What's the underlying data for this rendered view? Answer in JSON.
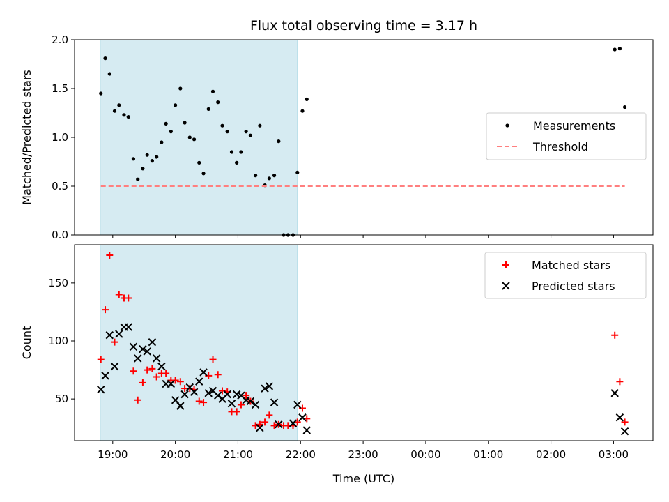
{
  "chart_data": {
    "title": "Flux total observing time = 3.17 h",
    "xlabel": "Time (UTC)",
    "x_unit": "hours since 18:00 UTC",
    "xlim": [
      0.39,
      9.63
    ],
    "xticks": [
      {
        "value": 1,
        "label": "19:00"
      },
      {
        "value": 2,
        "label": "20:00"
      },
      {
        "value": 3,
        "label": "21:00"
      },
      {
        "value": 4,
        "label": "22:00"
      },
      {
        "value": 5,
        "label": "23:00"
      },
      {
        "value": 6,
        "label": "00:00"
      },
      {
        "value": 7,
        "label": "01:00"
      },
      {
        "value": 8,
        "label": "02:00"
      },
      {
        "value": 9,
        "label": "03:00"
      }
    ],
    "shaded_span": {
      "x0": 0.8,
      "x1": 3.95,
      "color": "#add8e6"
    },
    "panels": [
      {
        "type": "scatter",
        "ylabel": "Matched/Predicted stars",
        "ylim": [
          0,
          2.0
        ],
        "yticks": [
          {
            "value": 0,
            "label": "0.0"
          },
          {
            "value": 0.5,
            "label": "0.5"
          },
          {
            "value": 1.0,
            "label": "1.0"
          },
          {
            "value": 1.5,
            "label": "1.5"
          },
          {
            "value": 2.0,
            "label": "2.0"
          }
        ],
        "legend": "center-right",
        "series": [
          {
            "name": "Measurements",
            "marker": "dot",
            "color": "#000000",
            "points": [
              [
                0.81,
                1.45
              ],
              [
                0.88,
                1.81
              ],
              [
                0.95,
                1.65
              ],
              [
                1.03,
                1.27
              ],
              [
                1.1,
                1.33
              ],
              [
                1.18,
                1.23
              ],
              [
                1.25,
                1.21
              ],
              [
                1.33,
                0.78
              ],
              [
                1.4,
                0.57
              ],
              [
                1.48,
                0.68
              ],
              [
                1.55,
                0.82
              ],
              [
                1.63,
                0.76
              ],
              [
                1.7,
                0.8
              ],
              [
                1.78,
                0.95
              ],
              [
                1.85,
                1.14
              ],
              [
                1.93,
                1.06
              ],
              [
                2.0,
                1.33
              ],
              [
                2.08,
                1.5
              ],
              [
                2.15,
                1.15
              ],
              [
                2.23,
                1.0
              ],
              [
                2.3,
                0.98
              ],
              [
                2.38,
                0.74
              ],
              [
                2.45,
                0.63
              ],
              [
                2.53,
                1.29
              ],
              [
                2.6,
                1.47
              ],
              [
                2.68,
                1.36
              ],
              [
                2.75,
                1.12
              ],
              [
                2.83,
                1.06
              ],
              [
                2.9,
                0.85
              ],
              [
                2.98,
                0.74
              ],
              [
                3.05,
                0.85
              ],
              [
                3.13,
                1.06
              ],
              [
                3.2,
                1.02
              ],
              [
                3.28,
                0.61
              ],
              [
                3.35,
                1.12
              ],
              [
                3.43,
                0.51
              ],
              [
                3.5,
                0.58
              ],
              [
                3.58,
                0.61
              ],
              [
                3.65,
                0.96
              ],
              [
                3.73,
                0.0
              ],
              [
                3.8,
                0.0
              ],
              [
                3.88,
                0.0
              ],
              [
                3.95,
                0.64
              ],
              [
                4.03,
                1.27
              ],
              [
                4.1,
                1.39
              ],
              [
                9.02,
                1.9
              ],
              [
                9.1,
                1.91
              ],
              [
                9.18,
                1.31
              ]
            ]
          },
          {
            "name": "Threshold",
            "marker": "dashed-line",
            "color": "#ff7f7f",
            "points": [
              [
                0.81,
                0.5
              ],
              [
                9.18,
                0.5
              ]
            ]
          }
        ]
      },
      {
        "type": "scatter",
        "ylabel": "Count",
        "ylim": [
          14,
          183
        ],
        "yticks": [
          {
            "value": 50,
            "label": "50"
          },
          {
            "value": 100,
            "label": "100"
          },
          {
            "value": 150,
            "label": "150"
          }
        ],
        "legend": "top-right",
        "series": [
          {
            "name": "Matched stars",
            "marker": "plus",
            "color": "#ff0000",
            "points": [
              [
                0.81,
                84
              ],
              [
                0.88,
                127
              ],
              [
                0.95,
                174
              ],
              [
                1.03,
                99
              ],
              [
                1.1,
                140
              ],
              [
                1.18,
                137
              ],
              [
                1.25,
                137
              ],
              [
                1.33,
                74
              ],
              [
                1.4,
                49
              ],
              [
                1.48,
                64
              ],
              [
                1.55,
                75
              ],
              [
                1.63,
                76
              ],
              [
                1.7,
                69
              ],
              [
                1.78,
                72
              ],
              [
                1.85,
                72
              ],
              [
                1.93,
                66
              ],
              [
                2.0,
                66
              ],
              [
                2.08,
                65
              ],
              [
                2.15,
                59
              ],
              [
                2.23,
                59
              ],
              [
                2.3,
                58
              ],
              [
                2.38,
                48
              ],
              [
                2.45,
                47
              ],
              [
                2.53,
                70
              ],
              [
                2.6,
                84
              ],
              [
                2.68,
                71
              ],
              [
                2.75,
                57
              ],
              [
                2.83,
                56
              ],
              [
                2.9,
                39
              ],
              [
                2.98,
                39
              ],
              [
                3.05,
                45
              ],
              [
                3.13,
                53
              ],
              [
                3.2,
                48
              ],
              [
                3.28,
                27
              ],
              [
                3.35,
                28
              ],
              [
                3.43,
                30
              ],
              [
                3.5,
                36
              ],
              [
                3.58,
                27
              ],
              [
                3.65,
                28
              ],
              [
                3.73,
                27
              ],
              [
                3.8,
                27
              ],
              [
                3.88,
                27
              ],
              [
                3.95,
                30
              ],
              [
                4.03,
                42
              ],
              [
                4.1,
                33
              ],
              [
                9.02,
                105
              ],
              [
                9.1,
                65
              ],
              [
                9.18,
                30
              ]
            ]
          },
          {
            "name": "Predicted stars",
            "marker": "x",
            "color": "#000000",
            "points": [
              [
                0.81,
                58
              ],
              [
                0.88,
                70
              ],
              [
                0.95,
                105
              ],
              [
                1.03,
                78
              ],
              [
                1.1,
                106
              ],
              [
                1.18,
                112
              ],
              [
                1.25,
                112
              ],
              [
                1.33,
                95
              ],
              [
                1.4,
                85
              ],
              [
                1.48,
                93
              ],
              [
                1.55,
                91
              ],
              [
                1.63,
                99
              ],
              [
                1.7,
                85
              ],
              [
                1.78,
                78
              ],
              [
                1.85,
                63
              ],
              [
                1.93,
                63
              ],
              [
                2.0,
                49
              ],
              [
                2.08,
                44
              ],
              [
                2.15,
                54
              ],
              [
                2.23,
                60
              ],
              [
                2.3,
                56
              ],
              [
                2.38,
                65
              ],
              [
                2.45,
                73
              ],
              [
                2.53,
                55
              ],
              [
                2.6,
                57
              ],
              [
                2.68,
                53
              ],
              [
                2.75,
                50
              ],
              [
                2.83,
                54
              ],
              [
                2.9,
                46
              ],
              [
                2.98,
                54
              ],
              [
                3.05,
                53
              ],
              [
                3.13,
                49
              ],
              [
                3.2,
                48
              ],
              [
                3.28,
                45
              ],
              [
                3.35,
                25
              ],
              [
                3.43,
                59
              ],
              [
                3.5,
                61
              ],
              [
                3.58,
                47
              ],
              [
                3.65,
                28
              ],
              [
                3.88,
                29
              ],
              [
                3.95,
                45
              ],
              [
                4.03,
                34
              ],
              [
                4.1,
                23
              ],
              [
                9.02,
                55
              ],
              [
                9.1,
                34
              ],
              [
                9.18,
                22
              ]
            ]
          }
        ]
      }
    ]
  }
}
